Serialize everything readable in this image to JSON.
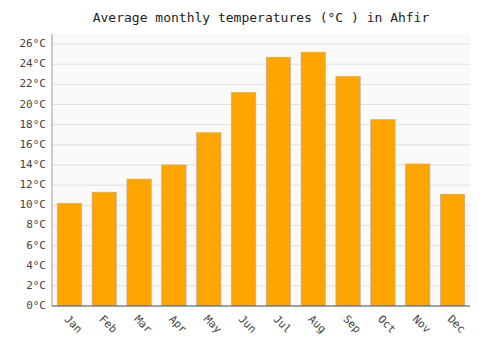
{
  "chart_data": {
    "type": "bar",
    "title": "Average monthly temperatures (°C ) in Ahfir",
    "categories": [
      "Jan",
      "Feb",
      "Mar",
      "Apr",
      "May",
      "Jun",
      "Jul",
      "Aug",
      "Sep",
      "Oct",
      "Nov",
      "Dec"
    ],
    "values": [
      10.2,
      11.3,
      12.6,
      14.0,
      17.2,
      21.2,
      24.7,
      25.2,
      22.8,
      18.5,
      14.1,
      11.1
    ],
    "color": "#FFA500",
    "ylim": [
      0,
      27
    ],
    "yticks": [
      {
        "value": 0,
        "label": "0°C"
      },
      {
        "value": 2,
        "label": "2°C"
      },
      {
        "value": 4,
        "label": "4°C"
      },
      {
        "value": 6,
        "label": "6°C"
      },
      {
        "value": 8,
        "label": "8°C"
      },
      {
        "value": 10,
        "label": "10°C"
      },
      {
        "value": 12,
        "label": "12°C"
      },
      {
        "value": 14,
        "label": "14°C"
      },
      {
        "value": 16,
        "label": "16°C"
      },
      {
        "value": 18,
        "label": "18°C"
      },
      {
        "value": 20,
        "label": "20°C"
      },
      {
        "value": 22,
        "label": "22°C"
      },
      {
        "value": 24,
        "label": "24°C"
      },
      {
        "value": 26,
        "label": "26°C"
      }
    ],
    "grid": true
  }
}
